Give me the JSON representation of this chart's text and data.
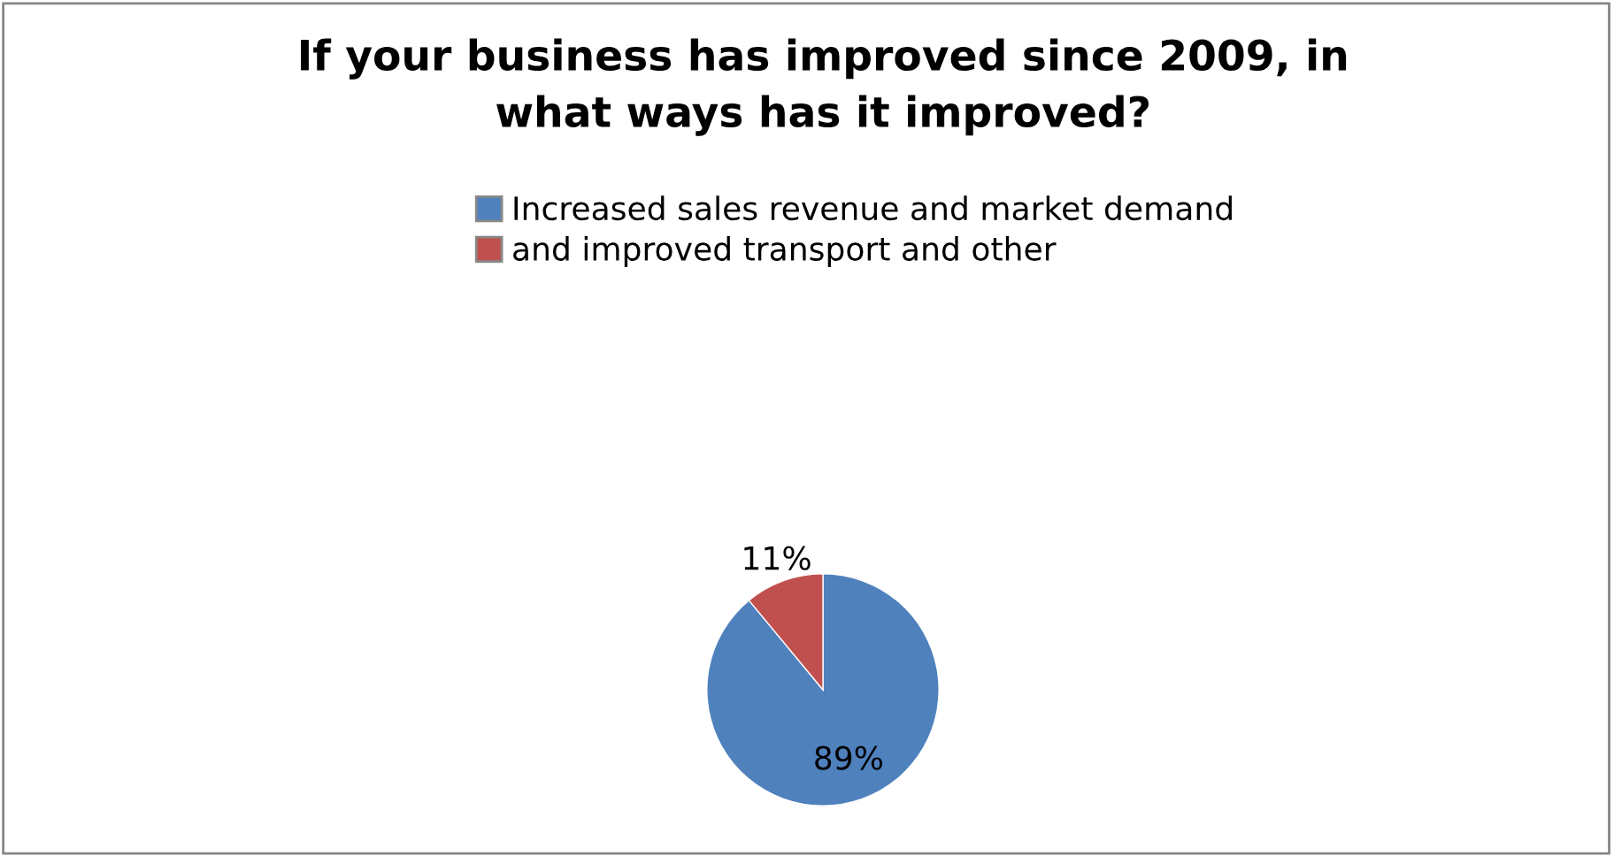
{
  "chart_data": {
    "type": "pie",
    "title": "If your business has improved since 2009, in\nwhat ways has it improved?",
    "categories": [
      "Increased sales revenue and market demand",
      "and improved transport and other"
    ],
    "values": [
      89,
      11
    ],
    "colors": [
      "#4f81bd",
      "#c0504d"
    ],
    "value_labels": [
      "89%",
      "11%"
    ],
    "legend": "top"
  }
}
